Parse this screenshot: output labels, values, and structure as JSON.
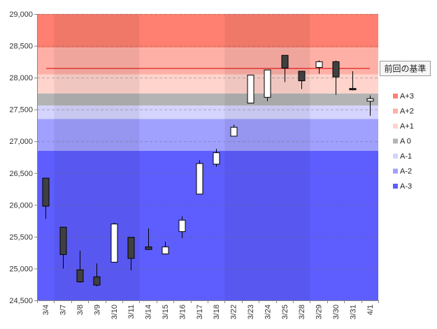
{
  "chart_data": {
    "type": "candlestick",
    "ylim": [
      24500,
      29000
    ],
    "y_ticks": [
      "24,500",
      "25,000",
      "25,500",
      "26,000",
      "26,500",
      "27,000",
      "27,500",
      "28,000",
      "28,500",
      "29,000"
    ],
    "y_tick_values": [
      24500,
      25000,
      25500,
      26000,
      26500,
      27000,
      27500,
      28000,
      28500,
      29000
    ],
    "categories": [
      "3/4",
      "3/7",
      "3/8",
      "3/9",
      "3/10",
      "3/11",
      "3/14",
      "3/15",
      "3/16",
      "3/17",
      "3/18",
      "3/22",
      "3/23",
      "3/24",
      "3/25",
      "3/28",
      "3/29",
      "3/30",
      "3/31",
      "4/1"
    ],
    "candles": [
      {
        "date": "3/4",
        "open": 26420,
        "high": 26420,
        "low": 25780,
        "close": 25980
      },
      {
        "date": "3/7",
        "open": 25650,
        "high": 25650,
        "low": 25000,
        "close": 25220
      },
      {
        "date": "3/8",
        "open": 24980,
        "high": 25280,
        "low": 24780,
        "close": 24790
      },
      {
        "date": "3/9",
        "open": 24870,
        "high": 25080,
        "low": 24720,
        "close": 24740
      },
      {
        "date": "3/10",
        "open": 25100,
        "high": 25720,
        "low": 25100,
        "close": 25700
      },
      {
        "date": "3/11",
        "open": 25490,
        "high": 25490,
        "low": 24970,
        "close": 25160
      },
      {
        "date": "3/14",
        "open": 25340,
        "high": 25630,
        "low": 25300,
        "close": 25300
      },
      {
        "date": "3/15",
        "open": 25230,
        "high": 25420,
        "low": 25230,
        "close": 25340
      },
      {
        "date": "3/16",
        "open": 25580,
        "high": 25820,
        "low": 25480,
        "close": 25760
      },
      {
        "date": "3/17",
        "open": 26170,
        "high": 26700,
        "low": 26170,
        "close": 26650
      },
      {
        "date": "3/18",
        "open": 26640,
        "high": 26880,
        "low": 26600,
        "close": 26820
      },
      {
        "date": "3/22",
        "open": 27080,
        "high": 27260,
        "low": 27080,
        "close": 27220
      },
      {
        "date": "3/23",
        "open": 27600,
        "high": 28040,
        "low": 27600,
        "close": 28040
      },
      {
        "date": "3/24",
        "open": 27690,
        "high": 28120,
        "low": 27630,
        "close": 28120
      },
      {
        "date": "3/25",
        "open": 28350,
        "high": 28350,
        "low": 27930,
        "close": 28150
      },
      {
        "date": "3/28",
        "open": 28100,
        "high": 28100,
        "low": 27820,
        "close": 27950
      },
      {
        "date": "3/29",
        "open": 28160,
        "high": 28270,
        "low": 28060,
        "close": 28250
      },
      {
        "date": "3/30",
        "open": 28250,
        "high": 28270,
        "low": 27730,
        "close": 28010
      },
      {
        "date": "3/31",
        "open": 27830,
        "high": 28100,
        "low": 27800,
        "close": 27810
      },
      {
        "date": "4/1",
        "open": 27630,
        "high": 27720,
        "low": 27400,
        "close": 27670
      }
    ],
    "reference_line": {
      "label": "前回の基準",
      "value": 28150
    },
    "bands": [
      {
        "name": "A+3",
        "from": 28470,
        "to": 29000,
        "color": "#ff8070"
      },
      {
        "name": "A+2",
        "from": 28050,
        "to": 28470,
        "color": "#ffb0a6"
      },
      {
        "name": "A+1",
        "from": 27750,
        "to": 28050,
        "color": "#ffd4cc"
      },
      {
        "name": "A 0",
        "from": 27560,
        "to": 27750,
        "color": "#b4b4b4"
      },
      {
        "name": "A-1",
        "from": 27350,
        "to": 27560,
        "color": "#d4d4ff"
      },
      {
        "name": "A-2",
        "from": 26850,
        "to": 27350,
        "color": "#a0a0ff"
      },
      {
        "name": "A-3",
        "from": 24500,
        "to": 26850,
        "color": "#5e5eff"
      }
    ],
    "shaded_columns": [
      [
        1,
        5
      ],
      [
        11,
        15
      ]
    ],
    "grid": true,
    "legend_position": "right"
  }
}
